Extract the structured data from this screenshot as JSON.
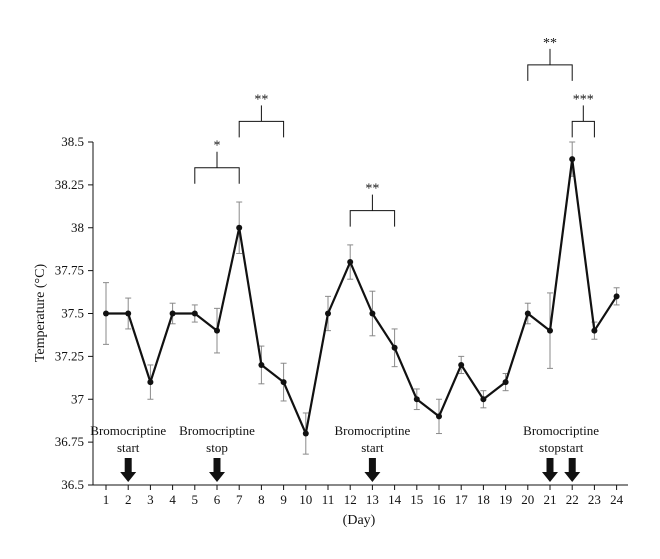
{
  "chart_data": {
    "type": "line",
    "xlabel": "(Day)",
    "ylabel": "Temperature (°C)",
    "xlim": [
      1,
      24
    ],
    "ylim": [
      36.5,
      38.5
    ],
    "x_ticks": [
      "1",
      "2",
      "3",
      "4",
      "5",
      "6",
      "7",
      "8",
      "9",
      "10",
      "11",
      "12",
      "13",
      "14",
      "15",
      "16",
      "17",
      "18",
      "19",
      "20",
      "21",
      "22",
      "23",
      "24"
    ],
    "y_ticks": [
      "36.5",
      "36.75",
      "37",
      "37.25",
      "37.5",
      "37.75",
      "38",
      "38.25",
      "38.5"
    ],
    "grid": false,
    "series": [
      {
        "x": [
          1,
          2,
          3,
          4,
          5,
          6,
          7,
          8,
          9,
          10,
          11,
          12,
          13,
          14,
          15,
          16,
          17,
          18,
          19,
          20,
          21,
          22,
          23,
          24
        ],
        "values": [
          37.5,
          37.5,
          37.1,
          37.5,
          37.5,
          37.4,
          38.0,
          37.2,
          37.1,
          36.8,
          37.5,
          37.8,
          37.5,
          37.3,
          37.0,
          36.9,
          37.2,
          37.0,
          37.1,
          37.5,
          37.4,
          38.4,
          37.4,
          37.6
        ],
        "error": [
          0.18,
          0.09,
          0.1,
          0.06,
          0.05,
          0.13,
          0.15,
          0.11,
          0.11,
          0.12,
          0.1,
          0.1,
          0.13,
          0.11,
          0.06,
          0.1,
          0.05,
          0.05,
          0.05,
          0.06,
          0.22,
          0.1,
          0.05,
          0.05
        ]
      }
    ],
    "annotations": [
      {
        "text_lines": [
          "Bromocriptine",
          "start"
        ],
        "day": 2
      },
      {
        "text_lines": [
          "Bromocriptine",
          "stop"
        ],
        "day": 6
      },
      {
        "text_lines": [
          "Bromocriptine",
          "start"
        ],
        "day": 13
      },
      {
        "text_lines": [
          "stop"
        ],
        "day": 21
      },
      {
        "text_lines": [
          "start"
        ],
        "day": 22
      }
    ],
    "extra_label": {
      "text": "Bromocriptine",
      "day": 21.5
    },
    "significance": [
      {
        "label": "*",
        "from": 5,
        "to": 7,
        "y": 38.35
      },
      {
        "label": "**",
        "from": 7,
        "to": 9,
        "y": 38.62
      },
      {
        "label": "**",
        "from": 12,
        "to": 14,
        "y": 38.1
      },
      {
        "label": "**",
        "from": 20,
        "to": 22,
        "y": 38.95
      },
      {
        "label": "***",
        "from": 22,
        "to": 23,
        "y": 38.62
      }
    ],
    "colors": {
      "line": "#111111",
      "error": "#8a8a8a",
      "axis": "#111111"
    }
  }
}
